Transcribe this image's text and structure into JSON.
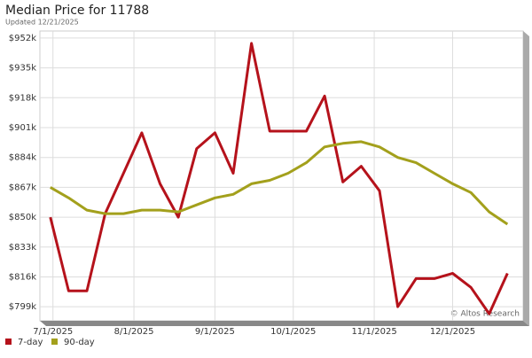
{
  "chart_data": {
    "type": "line",
    "title": "Median Price for 11788",
    "subtitle": "Updated 12/21/2025",
    "annotation": "© Altos Research",
    "x": [
      "2025-06-30",
      "2025-07-07",
      "2025-07-14",
      "2025-07-21",
      "2025-07-28",
      "2025-08-04",
      "2025-08-11",
      "2025-08-18",
      "2025-08-25",
      "2025-09-01",
      "2025-09-08",
      "2025-09-15",
      "2025-09-22",
      "2025-09-29",
      "2025-10-06",
      "2025-10-13",
      "2025-10-20",
      "2025-10-27",
      "2025-11-03",
      "2025-11-10",
      "2025-11-17",
      "2025-11-24",
      "2025-12-01",
      "2025-12-08",
      "2025-12-15",
      "2025-12-22"
    ],
    "series": [
      {
        "name": "7-day",
        "color": "#b5121b",
        "values": [
          850000,
          808000,
          808000,
          852000,
          875000,
          898000,
          869000,
          850000,
          889000,
          898000,
          875000,
          949000,
          899000,
          899000,
          899000,
          919000,
          870000,
          879000,
          865000,
          799000,
          815000,
          815000,
          818000,
          810000,
          795000,
          818000
        ]
      },
      {
        "name": "90-day",
        "color": "#a3a01c",
        "values": [
          867000,
          861000,
          854000,
          852000,
          852000,
          854000,
          854000,
          853000,
          857000,
          861000,
          863000,
          869000,
          871000,
          875000,
          881000,
          890000,
          892000,
          893000,
          890000,
          884000,
          881000,
          875000,
          869000,
          864000,
          853000,
          846000
        ]
      }
    ],
    "xlim": [
      "2025-06-26",
      "2025-12-28"
    ],
    "xticks": [
      {
        "value": "2025-07-01",
        "label": "7/1/2025"
      },
      {
        "value": "2025-08-01",
        "label": "8/1/2025"
      },
      {
        "value": "2025-09-01",
        "label": "9/1/2025"
      },
      {
        "value": "2025-10-01",
        "label": "10/1/2025"
      },
      {
        "value": "2025-11-01",
        "label": "11/1/2025"
      },
      {
        "value": "2025-12-01",
        "label": "12/1/2025"
      }
    ],
    "ylim": [
      791000,
      956000
    ],
    "yticks": [
      {
        "value": 799000,
        "label": "$799k"
      },
      {
        "value": 816000,
        "label": "$816k"
      },
      {
        "value": 833000,
        "label": "$833k"
      },
      {
        "value": 850000,
        "label": "$850k"
      },
      {
        "value": 867000,
        "label": "$867k"
      },
      {
        "value": 884000,
        "label": "$884k"
      },
      {
        "value": 901000,
        "label": "$901k"
      },
      {
        "value": 918000,
        "label": "$918k"
      },
      {
        "value": 935000,
        "label": "$935k"
      },
      {
        "value": 952000,
        "label": "$952k"
      }
    ],
    "grid": true
  }
}
